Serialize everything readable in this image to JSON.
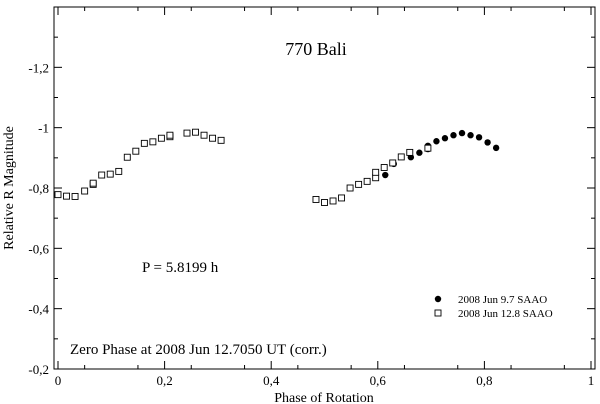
{
  "chart_data": {
    "type": "scatter",
    "title": "770 Bali",
    "xlabel": "Phase of Rotation",
    "ylabel": "Relative R Magnitude",
    "xlim": [
      0,
      1
    ],
    "ylim": [
      -0.2,
      -1.4
    ],
    "x_ticks": [
      0,
      0.2,
      0.4,
      0.6,
      0.8,
      1
    ],
    "x_tick_labels": [
      "0",
      "0,2",
      "0,4",
      "0,6",
      "0,8",
      "1"
    ],
    "y_ticks": [
      -0.2,
      -0.4,
      -0.6,
      -0.8,
      -1.0,
      -1.2
    ],
    "y_tick_labels": [
      "-0,2",
      "-0,4",
      "-0,6",
      "-0,8",
      "-1",
      "-1,2"
    ],
    "grid": false,
    "legend_position": "bottom-right",
    "annotations": [
      {
        "text": "P = 5.8199 h",
        "x": 0.16,
        "y": -0.53
      },
      {
        "text": "Zero Phase at 2008 Jun 12.7050 UT (corr.)",
        "x": 0.02,
        "y": -0.26
      }
    ],
    "series": [
      {
        "name": "2008 Jun 9.7 SAAO",
        "marker": "filled-circle",
        "points": [
          [
            0.614,
            -0.843
          ],
          [
            0.63,
            -0.88
          ],
          [
            0.662,
            -0.902
          ],
          [
            0.678,
            -0.917
          ],
          [
            0.694,
            -0.929
          ],
          [
            0.694,
            -0.94
          ],
          [
            0.71,
            -0.955
          ],
          [
            0.726,
            -0.965
          ],
          [
            0.742,
            -0.975
          ],
          [
            0.758,
            -0.982
          ],
          [
            0.774,
            -0.975
          ],
          [
            0.79,
            -0.968
          ],
          [
            0.806,
            -0.951
          ],
          [
            0.822,
            -0.933
          ]
        ]
      },
      {
        "name": "2008 Jun 12.8 SAAO",
        "marker": "open-square",
        "points": [
          [
            0.0,
            -0.778
          ],
          [
            0.016,
            -0.773
          ],
          [
            0.032,
            -0.772
          ],
          [
            0.05,
            -0.79
          ],
          [
            0.066,
            -0.812
          ],
          [
            0.066,
            -0.816
          ],
          [
            0.082,
            -0.843
          ],
          [
            0.098,
            -0.846
          ],
          [
            0.114,
            -0.855
          ],
          [
            0.13,
            -0.902
          ],
          [
            0.146,
            -0.922
          ],
          [
            0.162,
            -0.948
          ],
          [
            0.178,
            -0.953
          ],
          [
            0.194,
            -0.965
          ],
          [
            0.21,
            -0.97
          ],
          [
            0.21,
            -0.975
          ],
          [
            0.242,
            -0.982
          ],
          [
            0.258,
            -0.985
          ],
          [
            0.274,
            -0.975
          ],
          [
            0.29,
            -0.965
          ],
          [
            0.306,
            -0.958
          ],
          [
            0.484,
            -0.762
          ],
          [
            0.5,
            -0.752
          ],
          [
            0.516,
            -0.757
          ],
          [
            0.532,
            -0.767
          ],
          [
            0.548,
            -0.8
          ],
          [
            0.564,
            -0.812
          ],
          [
            0.58,
            -0.822
          ],
          [
            0.596,
            -0.834
          ],
          [
            0.596,
            -0.852
          ],
          [
            0.612,
            -0.868
          ],
          [
            0.628,
            -0.883
          ],
          [
            0.644,
            -0.903
          ],
          [
            0.66,
            -0.918
          ],
          [
            0.694,
            -0.932
          ]
        ]
      }
    ]
  }
}
